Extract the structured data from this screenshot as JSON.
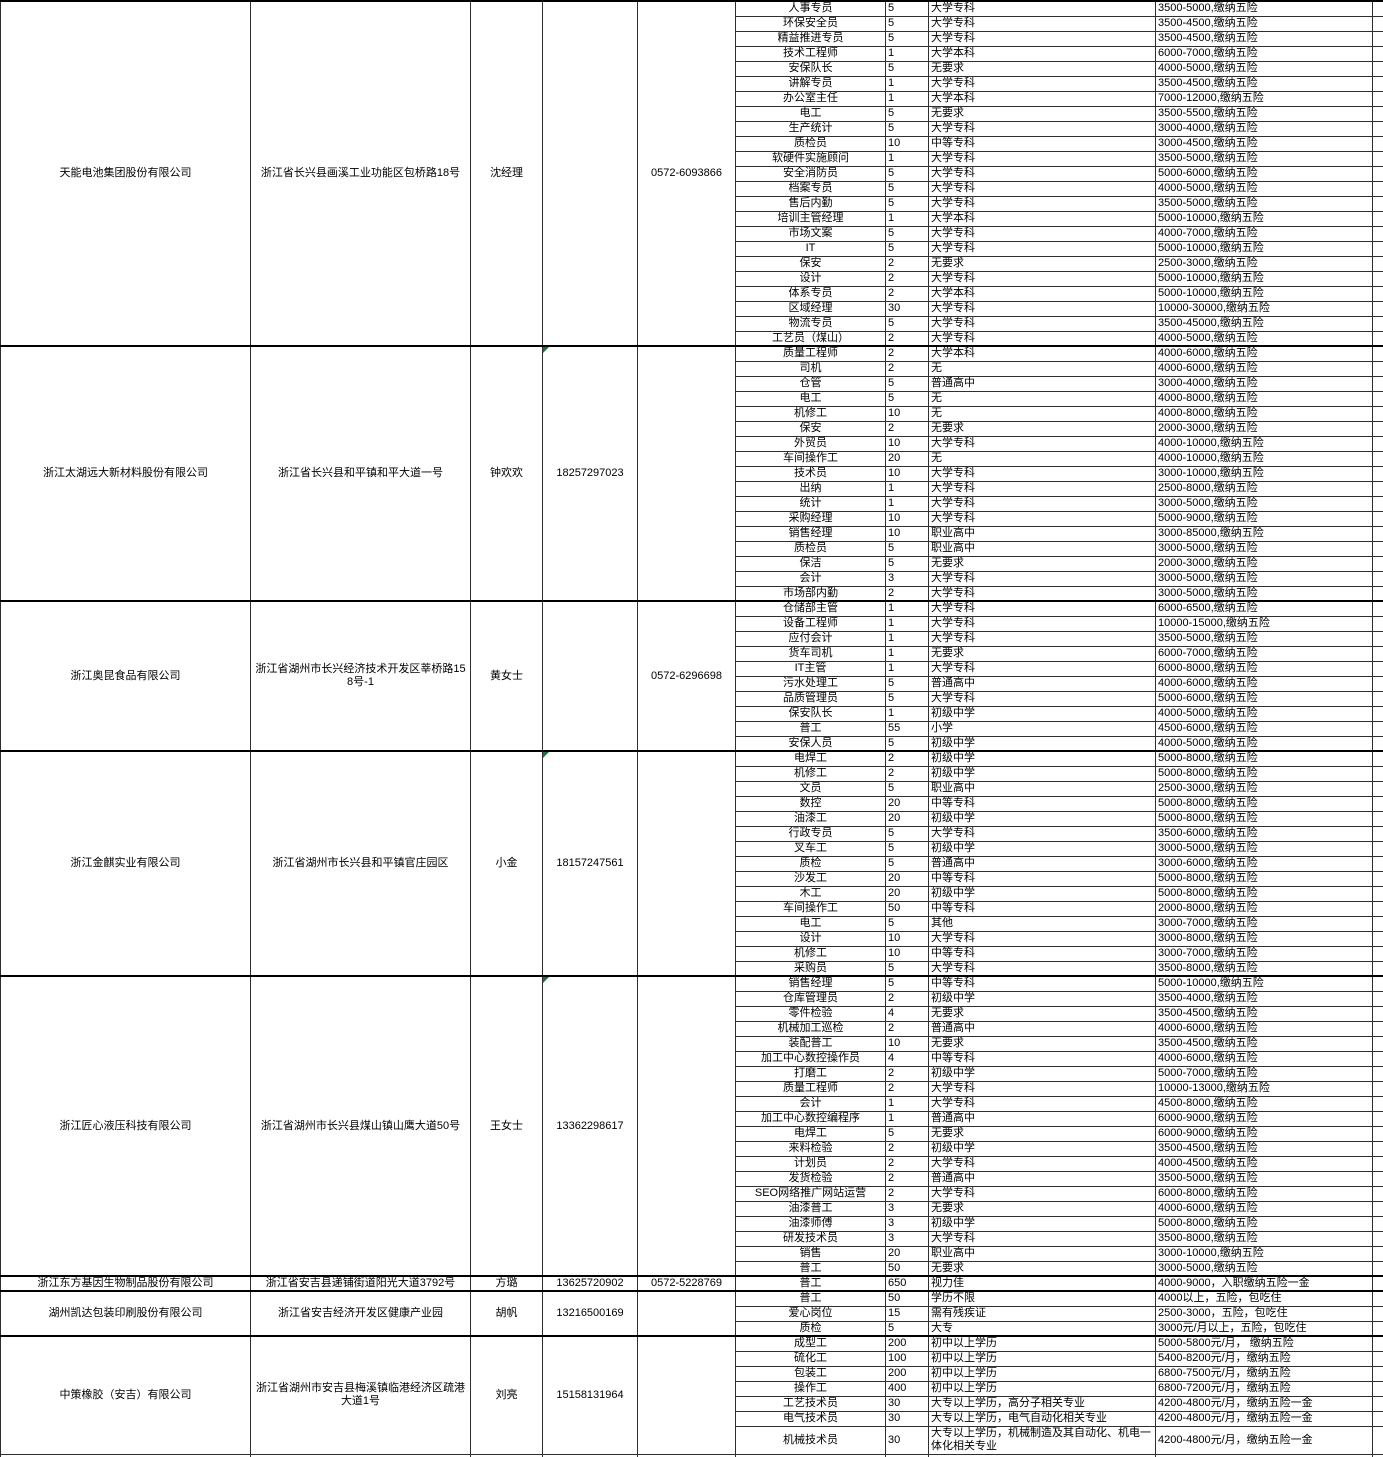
{
  "colors": {
    "flag_green": "#1f7244",
    "grid_line": "#2f2f2f",
    "block_border": "#000000",
    "text": "#000000",
    "background": "#ffffff"
  },
  "columns": [
    "company-name",
    "address",
    "contact-person",
    "mobile-phone",
    "landline-phone",
    "job-title",
    "headcount",
    "education-requirement",
    "salary-benefits"
  ],
  "companies": [
    {
      "name": "天能电池集团股份有限公司",
      "address": "浙江省长兴县画溪工业功能区包桥路18号",
      "contact": "沈经理",
      "mobile": "",
      "mobile_flag": false,
      "landline": "0572-6093866",
      "jobs": [
        [
          "人事专员",
          "5",
          "大学专科",
          "3500-5000,缴纳五险"
        ],
        [
          "环保安全员",
          "5",
          "大学专科",
          "3500-4500,缴纳五险"
        ],
        [
          "精益推进专员",
          "5",
          "大学专科",
          "3500-4500,缴纳五险"
        ],
        [
          "技术工程师",
          "1",
          "大学本科",
          "6000-7000,缴纳五险"
        ],
        [
          "安保队长",
          "5",
          "无要求",
          "4000-5000,缴纳五险"
        ],
        [
          "讲解专员",
          "1",
          "大学专科",
          "3500-4500,缴纳五险"
        ],
        [
          "办公室主任",
          "1",
          "大学本科",
          "7000-12000,缴纳五险"
        ],
        [
          "电工",
          "5",
          "无要求",
          "3500-5500,缴纳五险"
        ],
        [
          "生产统计",
          "5",
          "大学专科",
          "3000-4000,缴纳五险"
        ],
        [
          "质检员",
          "10",
          "中等专科",
          "3000-4500,缴纳五险"
        ],
        [
          "软硬件实施顾问",
          "1",
          "大学专科",
          "3500-5000,缴纳五险"
        ],
        [
          "安全消防员",
          "5",
          "大学专科",
          "5000-6000,缴纳五险"
        ],
        [
          "档案专员",
          "5",
          "大学专科",
          "4000-5000,缴纳五险"
        ],
        [
          "售后内勤",
          "5",
          "大学专科",
          "3500-5000,缴纳五险"
        ],
        [
          "培训主管经理",
          "1",
          "大学本科",
          "5000-10000,缴纳五险"
        ],
        [
          "市场文案",
          "5",
          "大学专科",
          "4000-7000,缴纳五险"
        ],
        [
          "IT",
          "5",
          "大学专科",
          "5000-10000,缴纳五险"
        ],
        [
          "保安",
          "2",
          "无要求",
          "2500-3000,缴纳五险"
        ],
        [
          "设计",
          "2",
          "大学专科",
          "5000-10000,缴纳五险"
        ],
        [
          "体系专员",
          "2",
          "大学本科",
          "5000-10000,缴纳五险"
        ],
        [
          "区域经理",
          "30",
          "大学专科",
          "10000-30000,缴纳五险"
        ],
        [
          "物流专员",
          "5",
          "大学专科",
          "3500-45000,缴纳五险"
        ],
        [
          "工艺员（煤山）",
          "2",
          "大学专科",
          "4000-5000,缴纳五险"
        ]
      ]
    },
    {
      "name": "浙江太湖远大新材料股份有限公司",
      "address": "浙江省长兴县和平镇和平大道一号",
      "contact": "钟欢欢",
      "mobile": "18257297023",
      "mobile_flag": true,
      "landline": "",
      "jobs": [
        [
          "质量工程师",
          "2",
          "大学本科",
          "4000-6000,缴纳五险"
        ],
        [
          "司机",
          "2",
          "无",
          "4000-6000,缴纳五险"
        ],
        [
          "仓管",
          "5",
          "普通高中",
          "3000-4000,缴纳五险"
        ],
        [
          "电工",
          "5",
          "无",
          "4000-8000,缴纳五险"
        ],
        [
          "机修工",
          "10",
          "无",
          "4000-8000,缴纳五险"
        ],
        [
          "保安",
          "2",
          "无要求",
          "2000-3000,缴纳五险"
        ],
        [
          "外贸员",
          "10",
          "大学专科",
          "4000-10000,缴纳五险"
        ],
        [
          "车间操作工",
          "20",
          "无",
          "4000-10000,缴纳五险"
        ],
        [
          "技术员",
          "10",
          "大学专科",
          "3000-10000,缴纳五险"
        ],
        [
          "出纳",
          "1",
          "大学专科",
          "2500-8000,缴纳五险"
        ],
        [
          "统计",
          "1",
          "大学专科",
          "3000-5000,缴纳五险"
        ],
        [
          "采购经理",
          "10",
          "大学专科",
          "5000-9000,缴纳五险"
        ],
        [
          "销售经理",
          "10",
          "职业高中",
          "3000-85000,缴纳五险"
        ],
        [
          "质检员",
          "5",
          "职业高中",
          "3000-5000,缴纳五险"
        ],
        [
          "保洁",
          "5",
          "无要求",
          "2000-3000,缴纳五险"
        ],
        [
          "会计",
          "3",
          "大学专科",
          "3000-5000,缴纳五险"
        ],
        [
          "市场部内勤",
          "2",
          "大学专科",
          "3000-5000,缴纳五险"
        ]
      ]
    },
    {
      "name": "浙江奥昆食品有限公司",
      "address": "浙江省湖州市长兴经济技术开发区莘桥路158号-1",
      "contact": "黄女士",
      "mobile": "",
      "mobile_flag": false,
      "landline": "0572-6296698",
      "jobs": [
        [
          "仓储部主管",
          "1",
          "大学专科",
          "6000-6500,缴纳五险"
        ],
        [
          "设备工程师",
          "1",
          "大学专科",
          "10000-15000,缴纳五险"
        ],
        [
          "应付会计",
          "1",
          "大学专科",
          "3500-5000,缴纳五险"
        ],
        [
          "货车司机",
          "1",
          "无要求",
          "6000-7000,缴纳五险"
        ],
        [
          "IT主管",
          "1",
          "大学专科",
          "6000-8000,缴纳五险"
        ],
        [
          "污水处理工",
          "5",
          "普通高中",
          "4000-6000,缴纳五险"
        ],
        [
          "品质管理员",
          "5",
          "大学专科",
          "5000-6000,缴纳五险"
        ],
        [
          "保安队长",
          "1",
          "初级中学",
          "4000-5000,缴纳五险"
        ],
        [
          "普工",
          "55",
          "小学",
          "4500-6000,缴纳五险"
        ],
        [
          "安保人员",
          "5",
          "初级中学",
          "4000-5000,缴纳五险"
        ]
      ]
    },
    {
      "name": "浙江金麒实业有限公司",
      "address": "浙江省湖州市长兴县和平镇官庄园区",
      "contact": "小金",
      "mobile": "18157247561",
      "mobile_flag": true,
      "landline": "",
      "jobs": [
        [
          "电焊工",
          "2",
          "初级中学",
          "5000-8000,缴纳五险"
        ],
        [
          "机修工",
          "2",
          "初级中学",
          "5000-8000,缴纳五险"
        ],
        [
          "文员",
          "5",
          "职业高中",
          "2500-3000,缴纳五险"
        ],
        [
          "数控",
          "20",
          "中等专科",
          "5000-8000,缴纳五险"
        ],
        [
          "油漆工",
          "20",
          "初级中学",
          "5000-8000,缴纳五险"
        ],
        [
          "行政专员",
          "5",
          "大学专科",
          "3500-6000,缴纳五险"
        ],
        [
          "叉车工",
          "5",
          "初级中学",
          "3000-5000,缴纳五险"
        ],
        [
          "质检",
          "5",
          "普通高中",
          "3000-6000,缴纳五险"
        ],
        [
          "沙发工",
          "20",
          "中等专科",
          "5000-8000,缴纳五险"
        ],
        [
          "木工",
          "20",
          "初级中学",
          "5000-8000,缴纳五险"
        ],
        [
          "车间操作工",
          "50",
          "中等专科",
          "2000-8000,缴纳五险"
        ],
        [
          "电工",
          "5",
          "其他",
          "3000-7000,缴纳五险"
        ],
        [
          "设计",
          "10",
          "大学专科",
          "3000-8000,缴纳五险"
        ],
        [
          "机修工",
          "10",
          "中等专科",
          "3000-7000,缴纳五险"
        ],
        [
          "采购员",
          "5",
          "大学专科",
          "3500-8000,缴纳五险"
        ]
      ]
    },
    {
      "name": "浙江匠心液压科技有限公司",
      "address": "浙江省湖州市长兴县煤山镇山鹰大道50号",
      "contact": "王女士",
      "mobile": "13362298617",
      "mobile_flag": true,
      "landline": "",
      "jobs": [
        [
          "销售经理",
          "5",
          "中等专科",
          "5000-10000,缴纳五险"
        ],
        [
          "仓库管理员",
          "2",
          "初级中学",
          "3500-4000,缴纳五险"
        ],
        [
          "零件检验",
          "4",
          "无要求",
          "3500-4500,缴纳五险"
        ],
        [
          "机械加工巡检",
          "2",
          "普通高中",
          "4000-6000,缴纳五险"
        ],
        [
          "装配普工",
          "10",
          "无要求",
          "3500-4500,缴纳五险"
        ],
        [
          "加工中心数控操作员",
          "4",
          "中等专科",
          "4000-6000,缴纳五险"
        ],
        [
          "打磨工",
          "2",
          "初级中学",
          "5000-7000,缴纳五险"
        ],
        [
          "质量工程师",
          "2",
          "大学专科",
          "10000-13000,缴纳五险"
        ],
        [
          "会计",
          "1",
          "大学专科",
          "4500-8000,缴纳五险"
        ],
        [
          "加工中心数控编程序",
          "1",
          "普通高中",
          "6000-9000,缴纳五险"
        ],
        [
          "电焊工",
          "5",
          "无要求",
          "6000-9000,缴纳五险"
        ],
        [
          "来料检验",
          "2",
          "初级中学",
          "3500-4500,缴纳五险"
        ],
        [
          "计划员",
          "2",
          "大学专科",
          "4000-4500,缴纳五险"
        ],
        [
          "发货检验",
          "2",
          "普通高中",
          "3500-5000,缴纳五险"
        ],
        [
          "SEO网络推广网站运营",
          "2",
          "大学专科",
          "6000-8000,缴纳五险"
        ],
        [
          "油漆普工",
          "3",
          "无要求",
          "4000-6000,缴纳五险"
        ],
        [
          "油漆师傅",
          "3",
          "初级中学",
          "5000-8000,缴纳五险"
        ],
        [
          "研发技术员",
          "3",
          "大学专科",
          "3500-8000,缴纳五险"
        ],
        [
          "销售",
          "20",
          "职业高中",
          "3000-10000,缴纳五险"
        ],
        [
          "普工",
          "50",
          "无要求",
          "3000-5000,缴纳五险"
        ]
      ]
    },
    {
      "name": "浙江东方基因生物制品股份有限公司",
      "address": "浙江省安吉县递铺街道阳光大道3792号",
      "contact": "方璐",
      "mobile": "13625720902",
      "mobile_flag": false,
      "landline": "0572-5228769",
      "jobs": [
        [
          "普工",
          "650",
          "视力佳",
          "4000-9000，入职缴纳五险一金"
        ]
      ]
    },
    {
      "name": "湖州凯达包装印刷股份有限公司",
      "address": "浙江省安吉经济开发区健康产业园",
      "contact": "胡帆",
      "mobile": "13216500169",
      "mobile_flag": false,
      "landline": "",
      "jobs": [
        [
          "普工",
          "50",
          "学历不限",
          "4000以上，五险，包吃住"
        ],
        [
          "爱心岗位",
          "15",
          "需有残疾证",
          "2500-3000，五险，包吃住"
        ],
        [
          "质检",
          "5",
          "大专",
          "3000元/月以上，五险，包吃住"
        ]
      ]
    },
    {
      "name": "中策橡胶（安吉）有限公司",
      "address": "浙江省湖州市安吉县梅溪镇临港经济区疏港大道1号",
      "contact": "刘亮",
      "mobile": "15158131964",
      "mobile_flag": false,
      "landline": "",
      "jobs": [
        [
          "成型工",
          "200",
          "初中以上学历",
          "5000-5800元/月， 缴纳五险"
        ],
        [
          "硫化工",
          "100",
          "初中以上学历",
          "5400-8200元/月，缴纳五险"
        ],
        [
          "包装工",
          "200",
          "初中以上学历",
          "6800-7500元/月，缴纳五险"
        ],
        [
          "操作工",
          "400",
          "初中以上学历",
          "6800-7200元/月，缴纳五险"
        ],
        [
          "工艺技术员",
          "30",
          "大专以上学历，高分子相关专业",
          "4200-4800元/月，缴纳五险一金"
        ],
        [
          "电气技术员",
          "30",
          "大专以上学历，电气自动化相关专业",
          "4200-4800元/月，缴纳五险一金"
        ],
        [
          "机械技术员",
          "30",
          "大专以上学历，机械制造及其自动化、机电一体化相关专业",
          "4200-4800元/月，缴纳五险一金",
          1
        ]
      ]
    }
  ]
}
